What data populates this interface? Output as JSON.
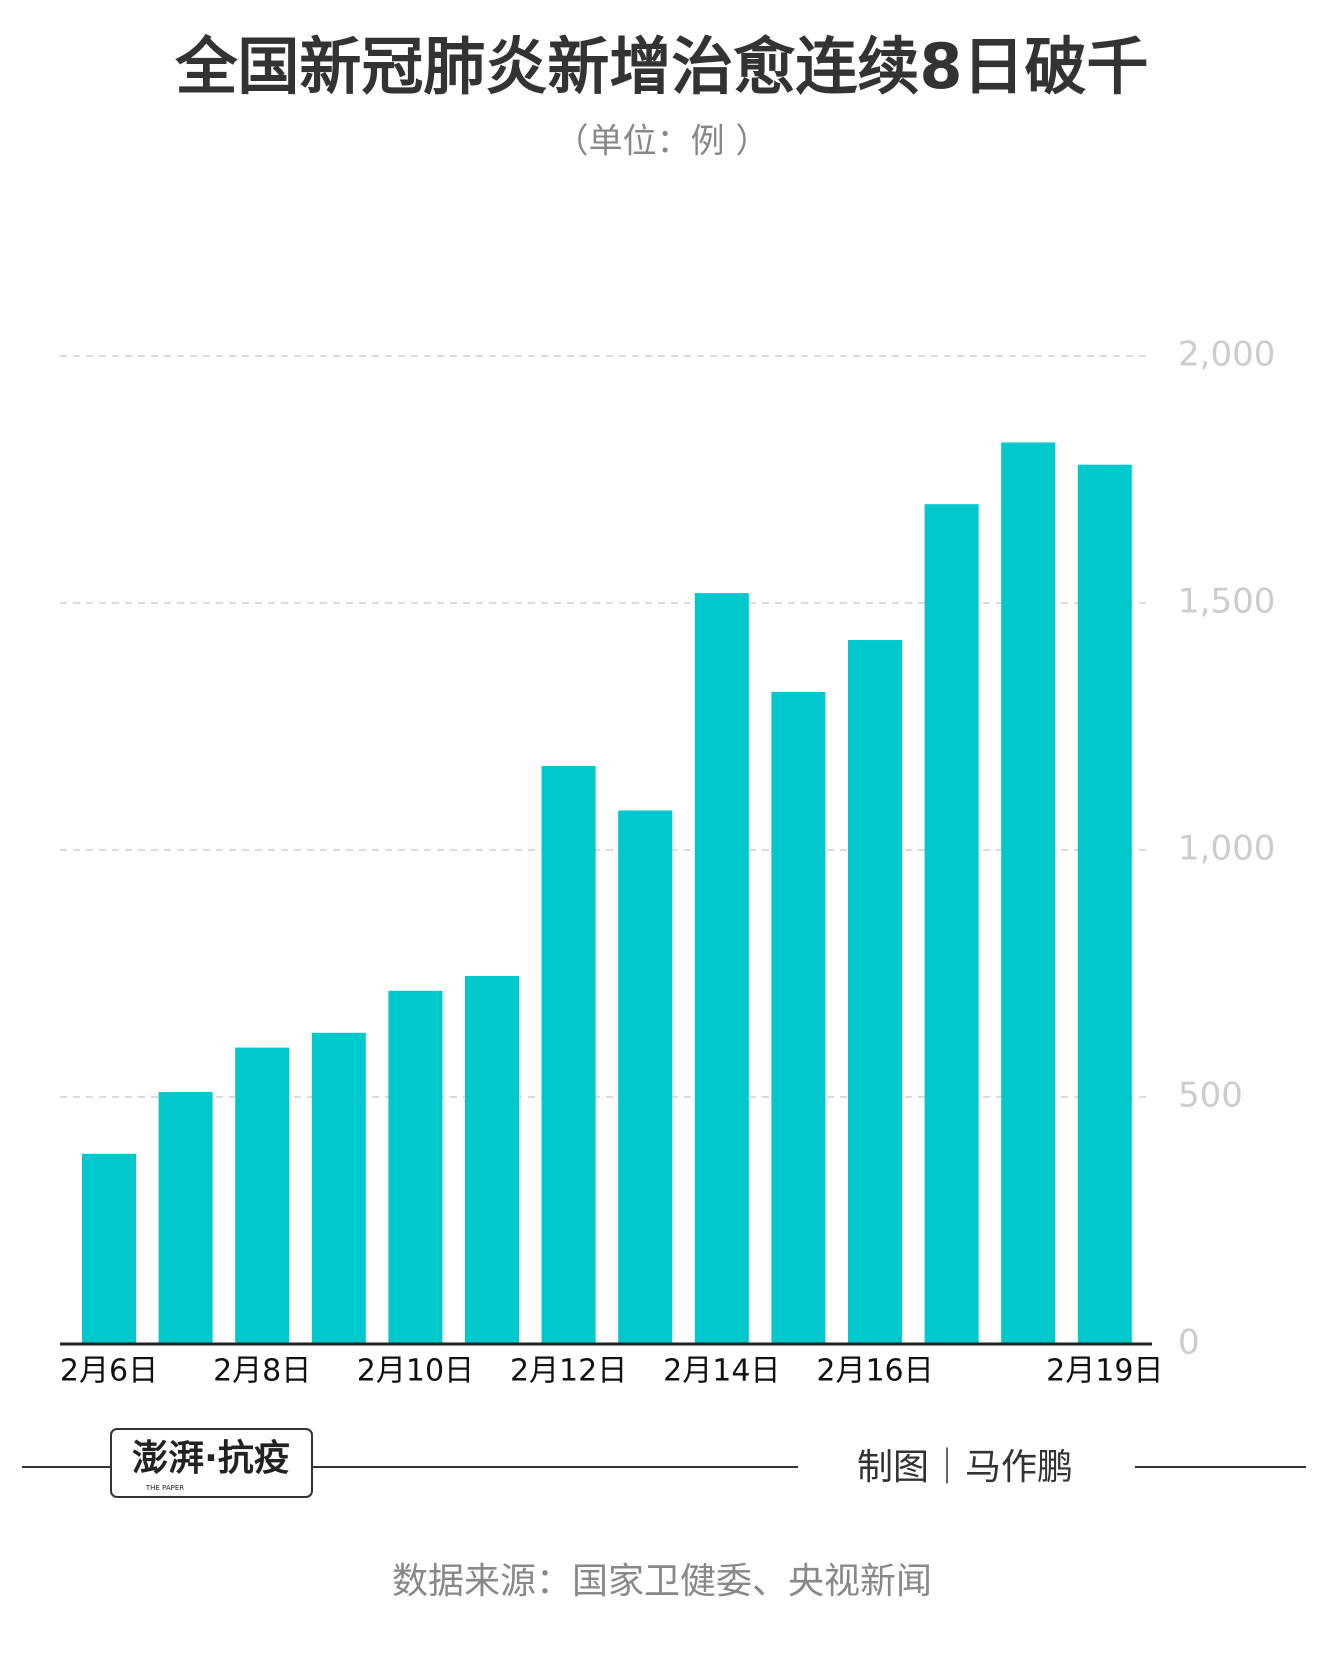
{
  "chart_data": {
    "type": "bar",
    "title": "全国新冠肺炎新增治愈连续8日破千",
    "subtitle": "（单位：例 ）",
    "categories": [
      "2月6日",
      null,
      "2月8日",
      null,
      "2月10日",
      null,
      "2月12日",
      null,
      "2月14日",
      null,
      "2月16日",
      null,
      null,
      "2月19日"
    ],
    "values": [
      385,
      510,
      600,
      630,
      715,
      745,
      1170,
      1080,
      1520,
      1320,
      1425,
      1700,
      1825,
      1780
    ],
    "color": "#00c8cc",
    "ylim": [
      0,
      2000
    ],
    "yticks": [
      0,
      500,
      {
        "value": 1000,
        "label": "1,000"
      },
      {
        "value": 1500,
        "label": "1,500"
      },
      {
        "value": 2000,
        "label": "2,000"
      }
    ],
    "grid": true
  },
  "footer": {
    "logo": "澎湃·抗疫",
    "logo_sub": "THE PAPER",
    "credit": "制图｜马作鹏",
    "source": "数据来源：国家卫健委、央视新闻"
  }
}
